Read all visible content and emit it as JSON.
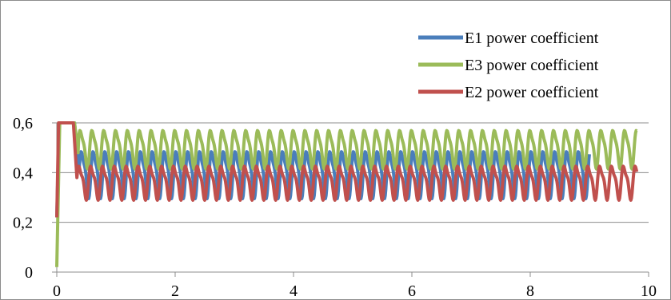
{
  "chart_data": {
    "type": "line",
    "title": "",
    "xlabel": "",
    "ylabel": "",
    "xlim": [
      0,
      10
    ],
    "ylim": [
      0,
      0.6
    ],
    "x_ticks": [
      0,
      2,
      4,
      6,
      8,
      10
    ],
    "x_tick_labels": [
      "0",
      "2",
      "4",
      "6",
      "8",
      "10"
    ],
    "y_ticks": [
      0,
      0.2,
      0.4,
      0.6
    ],
    "y_tick_labels": [
      "0",
      "0,2",
      "0,4",
      "0,6"
    ],
    "grid": "horizontal",
    "legend_position": "top-right",
    "series": [
      {
        "name": "E1 power coefficient",
        "color": "#4a7ebb",
        "x_end": 9.0,
        "startup": [
          [
            0,
            0.22
          ],
          [
            0.04,
            0.6
          ],
          [
            0.3,
            0.6
          ],
          [
            0.38,
            0.42
          ]
        ],
        "oscillation": {
          "period": 0.2,
          "mid": 0.4,
          "amplitude": 0.085,
          "secondary_amplitude": 0.025,
          "start": 0.38,
          "upper_clip": 0.6
        }
      },
      {
        "name": "E3 power coefficient",
        "color": "#9bbb59",
        "x_end": 9.8,
        "startup": [
          [
            0,
            0.02
          ],
          [
            0.05,
            0.6
          ],
          [
            0.3,
            0.6
          ],
          [
            0.36,
            0.48
          ]
        ],
        "oscillation": {
          "period": 0.2,
          "mid": 0.5,
          "amplitude": 0.07,
          "secondary_amplitude": 0.02,
          "start": 0.36,
          "upper_clip": 0.6
        }
      },
      {
        "name": "E2 power coefficient",
        "color": "#c0504d",
        "x_end": 9.8,
        "startup": [
          [
            0,
            0.22
          ],
          [
            0.03,
            0.6
          ],
          [
            0.28,
            0.6
          ],
          [
            0.34,
            0.38
          ]
        ],
        "oscillation": {
          "period": 0.2,
          "mid": 0.365,
          "amplitude": 0.06,
          "secondary_amplitude": 0.02,
          "start": 0.34,
          "upper_clip": 0.6
        }
      }
    ],
    "legend_order": [
      0,
      1,
      2
    ]
  }
}
